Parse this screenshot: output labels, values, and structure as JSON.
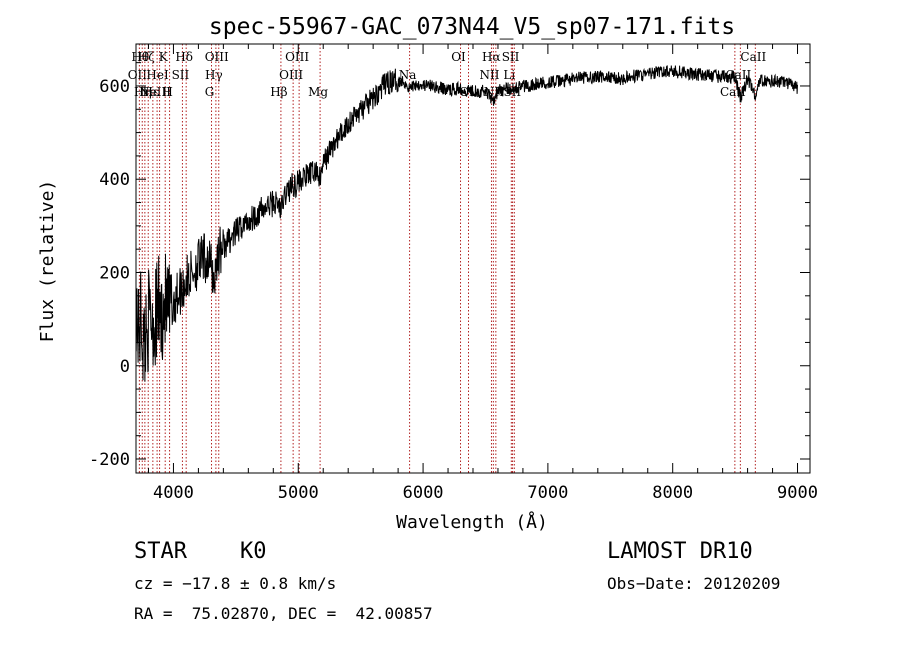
{
  "chart_data": {
    "type": "line",
    "title": "spec-55967-GAC_073N44_V5_sp07-171.fits",
    "xlabel": "Wavelength (Å)",
    "ylabel": "Flux (relative)",
    "xlim": [
      3700,
      9100
    ],
    "ylim": [
      -230,
      690
    ],
    "x_ticks": [
      4000,
      5000,
      6000,
      7000,
      8000,
      9000
    ],
    "y_ticks": [
      -200,
      0,
      200,
      400,
      600
    ],
    "grid": false,
    "line_color": "#000000",
    "marker_line_color": "#b22222",
    "series_anchor_points": [
      [
        3700,
        150
      ],
      [
        3720,
        60
      ],
      [
        3740,
        120
      ],
      [
        3760,
        40
      ],
      [
        3790,
        90
      ],
      [
        3820,
        110
      ],
      [
        3850,
        90
      ],
      [
        3880,
        130
      ],
      [
        3900,
        100
      ],
      [
        3930,
        140
      ],
      [
        3950,
        120
      ],
      [
        3970,
        110
      ],
      [
        4000,
        140
      ],
      [
        4050,
        160
      ],
      [
        4100,
        180
      ],
      [
        4150,
        200
      ],
      [
        4200,
        220
      ],
      [
        4250,
        230
      ],
      [
        4300,
        215
      ],
      [
        4330,
        180
      ],
      [
        4350,
        240
      ],
      [
        4400,
        255
      ],
      [
        4450,
        270
      ],
      [
        4500,
        285
      ],
      [
        4550,
        300
      ],
      [
        4600,
        310
      ],
      [
        4650,
        322
      ],
      [
        4700,
        332
      ],
      [
        4750,
        340
      ],
      [
        4800,
        350
      ],
      [
        4850,
        345
      ],
      [
        4861,
        330
      ],
      [
        4900,
        372
      ],
      [
        4950,
        385
      ],
      [
        5000,
        395
      ],
      [
        5050,
        405
      ],
      [
        5100,
        412
      ],
      [
        5150,
        418
      ],
      [
        5175,
        398
      ],
      [
        5200,
        432
      ],
      [
        5250,
        460
      ],
      [
        5300,
        480
      ],
      [
        5350,
        500
      ],
      [
        5400,
        520
      ],
      [
        5450,
        535
      ],
      [
        5500,
        548
      ],
      [
        5550,
        560
      ],
      [
        5600,
        572
      ],
      [
        5650,
        590
      ],
      [
        5700,
        605
      ],
      [
        5750,
        610
      ],
      [
        5800,
        612
      ],
      [
        5850,
        608
      ],
      [
        5890,
        595
      ],
      [
        5950,
        605
      ],
      [
        6000,
        602
      ],
      [
        6050,
        600
      ],
      [
        6100,
        598
      ],
      [
        6150,
        595
      ],
      [
        6200,
        592
      ],
      [
        6250,
        593
      ],
      [
        6300,
        595
      ],
      [
        6350,
        590
      ],
      [
        6400,
        592
      ],
      [
        6450,
        588
      ],
      [
        6500,
        590
      ],
      [
        6563,
        570
      ],
      [
        6600,
        590
      ],
      [
        6650,
        592
      ],
      [
        6700,
        595
      ],
      [
        6750,
        598
      ],
      [
        6800,
        600
      ],
      [
        6900,
        603
      ],
      [
        7000,
        608
      ],
      [
        7100,
        610
      ],
      [
        7200,
        615
      ],
      [
        7300,
        618
      ],
      [
        7400,
        620
      ],
      [
        7500,
        618
      ],
      [
        7600,
        615
      ],
      [
        7700,
        622
      ],
      [
        7800,
        625
      ],
      [
        7900,
        630
      ],
      [
        8000,
        632
      ],
      [
        8100,
        628
      ],
      [
        8200,
        625
      ],
      [
        8300,
        622
      ],
      [
        8400,
        620
      ],
      [
        8500,
        618
      ],
      [
        8542,
        575
      ],
      [
        8600,
        615
      ],
      [
        8662,
        580
      ],
      [
        8700,
        612
      ],
      [
        8800,
        610
      ],
      [
        8900,
        608
      ],
      [
        9000,
        595
      ]
    ],
    "marker_lines": [
      {
        "x": 3727,
        "label": "OII",
        "row": 1
      },
      {
        "x": 3750,
        "label": "Hθ",
        "row": 0
      },
      {
        "x": 3771,
        "label": "Hη",
        "row": 2
      },
      {
        "x": 3798,
        "label": "Hζ",
        "row": 0
      },
      {
        "x": 3835,
        "label": "Hε",
        "row": 2
      },
      {
        "x": 3869,
        "label": "NeIII",
        "row": 2
      },
      {
        "x": 3889,
        "label": "HeI",
        "row": 1
      },
      {
        "x": 3934,
        "label": "K",
        "row": 0
      },
      {
        "x": 3969,
        "label": "H",
        "row": 2
      },
      {
        "x": 4072,
        "label": "SII",
        "row": 1
      },
      {
        "x": 4102,
        "label": "Hδ",
        "row": 0
      },
      {
        "x": 4305,
        "label": "G",
        "row": 2
      },
      {
        "x": 4340,
        "label": "Hγ",
        "row": 1
      },
      {
        "x": 4363,
        "label": "OIII",
        "row": 0
      },
      {
        "x": 4861,
        "label": "Hβ",
        "row": 2
      },
      {
        "x": 4959,
        "label": "OIII",
        "row": 1
      },
      {
        "x": 5007,
        "label": "OIII",
        "row": 0
      },
      {
        "x": 5175,
        "label": "Mg",
        "row": 2
      },
      {
        "x": 5892,
        "label": "Na",
        "row": 1
      },
      {
        "x": 6300,
        "label": "OI",
        "row": 0
      },
      {
        "x": 6364,
        "label": "OI",
        "row": 2
      },
      {
        "x": 6548,
        "label": "NII",
        "row": 1
      },
      {
        "x": 6563,
        "label": "Hα",
        "row": 0
      },
      {
        "x": 6583,
        "label": "NII",
        "row": 2
      },
      {
        "x": 6707,
        "label": "Li",
        "row": 1
      },
      {
        "x": 6717,
        "label": "SII",
        "row": 0
      },
      {
        "x": 6731,
        "label": "SII",
        "row": 2
      },
      {
        "x": 8498,
        "label": "CaII",
        "row": 2
      },
      {
        "x": 8542,
        "label": "CaII",
        "row": 1
      },
      {
        "x": 8662,
        "label": "CaII",
        "row": 0
      }
    ]
  },
  "info": {
    "class_label": "STAR",
    "subclass_label": "K0",
    "survey_label": "LAMOST DR10",
    "redshift_line": "cz = −17.8 ± 0.8 km/s",
    "obs_date_line": "Obs−Date: 20120209",
    "coords_line": "RA =  75.02870, DEC =  42.00857"
  }
}
